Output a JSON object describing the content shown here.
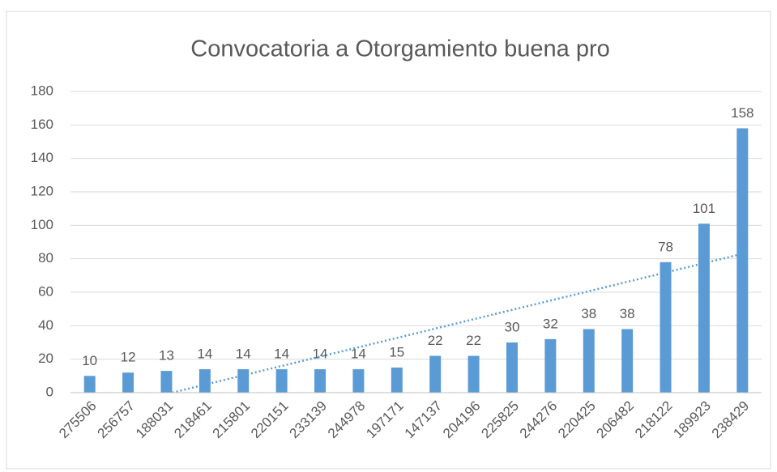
{
  "chart_data": {
    "type": "bar",
    "title": "Convocatoria a Otorgamiento buena pro",
    "categories": [
      "275506",
      "256757",
      "188031",
      "218461",
      "215801",
      "220151",
      "233139",
      "244978",
      "197171",
      "147137",
      "204196",
      "225825",
      "244276",
      "220425",
      "206482",
      "218122",
      "189923",
      "238429"
    ],
    "values": [
      10,
      12,
      13,
      14,
      14,
      14,
      14,
      14,
      15,
      22,
      22,
      30,
      32,
      38,
      38,
      78,
      101,
      158
    ],
    "color": "#5b9bd5",
    "ylim": [
      0,
      180
    ],
    "yticks": [
      0,
      20,
      40,
      60,
      80,
      100,
      120,
      140,
      160,
      180
    ],
    "grid": true,
    "trendline": "linear"
  }
}
